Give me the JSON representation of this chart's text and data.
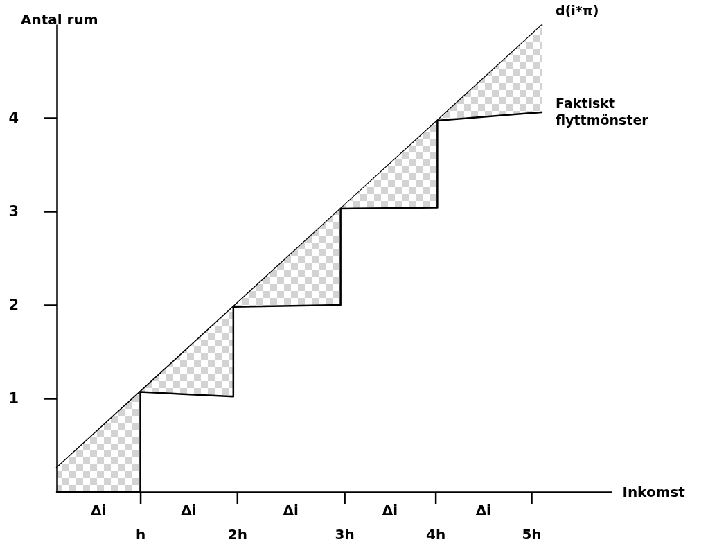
{
  "chart_data": {
    "type": "line",
    "xlabel": "Inkomst",
    "ylabel": "Antal rum",
    "xlim": [
      0,
      5.85
    ],
    "ylim": [
      0,
      5.0
    ],
    "xticks": [
      {
        "value": 0.88,
        "label": "h"
      },
      {
        "value": 1.9,
        "label": "2h"
      },
      {
        "value": 3.03,
        "label": "3h"
      },
      {
        "value": 3.99,
        "label": "4h"
      },
      {
        "value": 5.0,
        "label": "5h"
      }
    ],
    "yticks": [
      1,
      2,
      3,
      4
    ],
    "grid": false,
    "legend": false,
    "marker": "none",
    "line_style": "solid",
    "annotations": [
      "Δi",
      "Δi",
      "Δi",
      "Δi",
      "Δi"
    ],
    "series": [
      {
        "name": "d(i*π)",
        "color": "#000000",
        "x": [
          0,
          5.11
        ],
        "values": [
          0.26,
          4.99
        ]
      },
      {
        "name": "Faktiskt flyttmönster",
        "color": "#000000",
        "x": [
          0,
          0.88,
          0.88,
          1.86,
          1.86,
          2.99,
          2.99,
          4.01,
          4.01,
          5.11
        ],
        "values": [
          0,
          0,
          1.07,
          1.02,
          1.98,
          2.0,
          3.03,
          3.04,
          3.97,
          4.06
        ],
        "lower": [
          0,
          0,
          1.07,
          1.02,
          1.98,
          2.0,
          3.03,
          3.04,
          3.97,
          4.06
        ],
        "upper": [
          0.26,
          1.07,
          1.07,
          1.98,
          1.98,
          3.03,
          3.03,
          3.97,
          3.97,
          4.99
        ]
      }
    ]
  }
}
